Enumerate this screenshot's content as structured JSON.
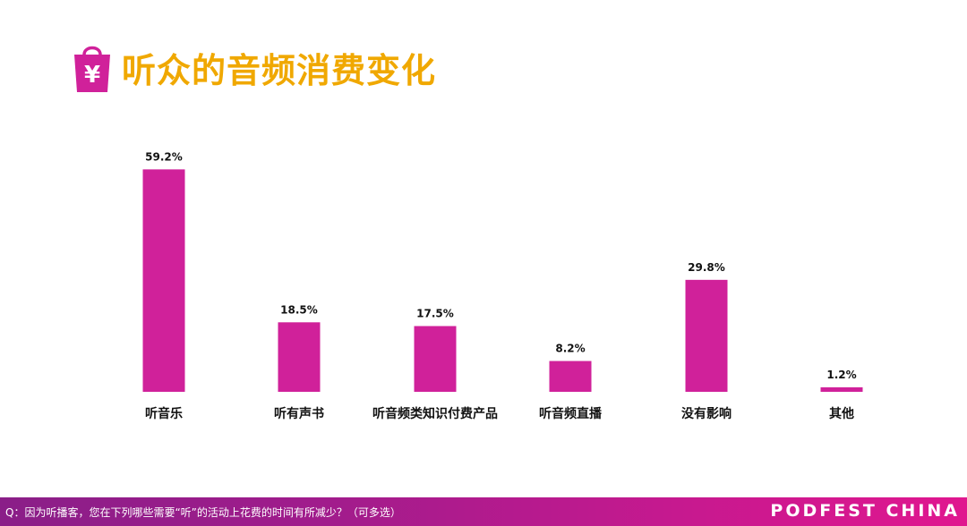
{
  "header": {
    "title": "听众的音频消费变化",
    "icon": "shopping-bag-yen-icon",
    "icon_glyph": "¥"
  },
  "chart_data": {
    "type": "bar",
    "categories": [
      "听音乐",
      "听有声书",
      "听音频类知识付费产品",
      "听音频直播",
      "没有影响",
      "其他"
    ],
    "values": [
      59.2,
      18.5,
      17.5,
      8.2,
      29.8,
      1.2
    ],
    "value_labels": [
      "59.2%",
      "18.5%",
      "17.5%",
      "8.2%",
      "29.8%",
      "1.2%"
    ],
    "ylim": [
      0,
      60
    ],
    "grid": false,
    "legend": "none"
  },
  "footer": {
    "question": "Q：因为听播客，您在下列哪些需要“听”的活动上花费的时间有所减少？（可多选）",
    "brand": "PODFEST CHINA"
  },
  "colors": {
    "bar": "#d0219a",
    "title": "#f0a800",
    "label_text": "#111111",
    "footer_start": "#8a1e88",
    "footer_end": "#e0178f"
  }
}
